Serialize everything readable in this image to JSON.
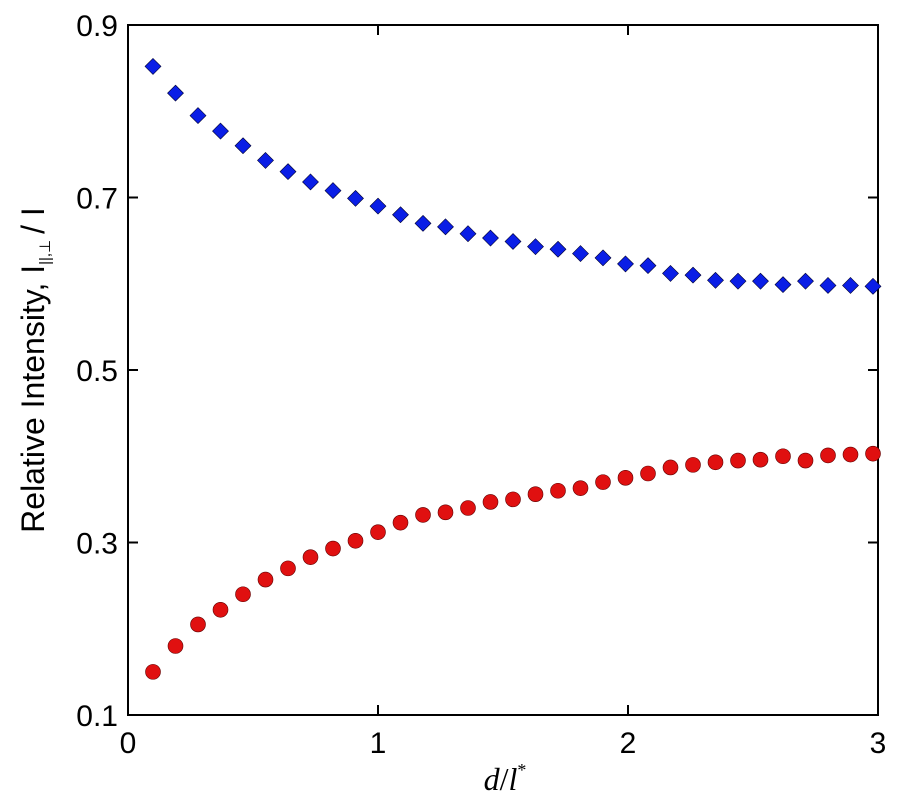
{
  "chart_data": {
    "type": "scatter",
    "title": "",
    "xlabel": {
      "d": "d",
      "slash": "/",
      "l": "l",
      "star": "*"
    },
    "ylabel": {
      "main": "Relative Intensity, I",
      "subscript": "||,⊥",
      "tail": "/ I"
    },
    "xlim": [
      0,
      3
    ],
    "ylim": [
      0.1,
      0.9
    ],
    "xticks": [
      0,
      1,
      2,
      3
    ],
    "xtick_labels": [
      "0",
      "1",
      "2",
      "3"
    ],
    "yticks": [
      0.1,
      0.3,
      0.5,
      0.7,
      0.9
    ],
    "ytick_labels": [
      "0.1",
      "0.3",
      "0.5",
      "0.7",
      "0.9"
    ],
    "grid": false,
    "series": [
      {
        "marker": "diamond",
        "color": "#0a1ee6",
        "x": [
          0.1,
          0.19,
          0.28,
          0.37,
          0.46,
          0.55,
          0.64,
          0.73,
          0.82,
          0.91,
          1.0,
          1.09,
          1.18,
          1.27,
          1.36,
          1.45,
          1.54,
          1.63,
          1.72,
          1.81,
          1.9,
          1.99,
          2.08,
          2.17,
          2.26,
          2.35,
          2.44,
          2.53,
          2.62,
          2.71,
          2.8,
          2.89,
          2.98
        ],
        "y": [
          0.852,
          0.821,
          0.795,
          0.777,
          0.76,
          0.743,
          0.73,
          0.718,
          0.708,
          0.699,
          0.69,
          0.68,
          0.67,
          0.666,
          0.658,
          0.653,
          0.649,
          0.643,
          0.64,
          0.635,
          0.63,
          0.623,
          0.621,
          0.612,
          0.61,
          0.604,
          0.603,
          0.603,
          0.599,
          0.603,
          0.598,
          0.598,
          0.597
        ]
      },
      {
        "marker": "circle",
        "color": "#e01010",
        "x": [
          0.1,
          0.19,
          0.28,
          0.37,
          0.46,
          0.55,
          0.64,
          0.73,
          0.82,
          0.91,
          1.0,
          1.09,
          1.18,
          1.27,
          1.36,
          1.45,
          1.54,
          1.63,
          1.72,
          1.81,
          1.9,
          1.99,
          2.08,
          2.17,
          2.26,
          2.35,
          2.44,
          2.53,
          2.62,
          2.71,
          2.8,
          2.89,
          2.98
        ],
        "y": [
          0.15,
          0.18,
          0.205,
          0.222,
          0.24,
          0.257,
          0.27,
          0.283,
          0.293,
          0.302,
          0.312,
          0.323,
          0.332,
          0.335,
          0.34,
          0.347,
          0.35,
          0.356,
          0.36,
          0.363,
          0.37,
          0.375,
          0.38,
          0.387,
          0.39,
          0.393,
          0.395,
          0.396,
          0.4,
          0.395,
          0.401,
          0.402,
          0.403
        ]
      }
    ]
  }
}
